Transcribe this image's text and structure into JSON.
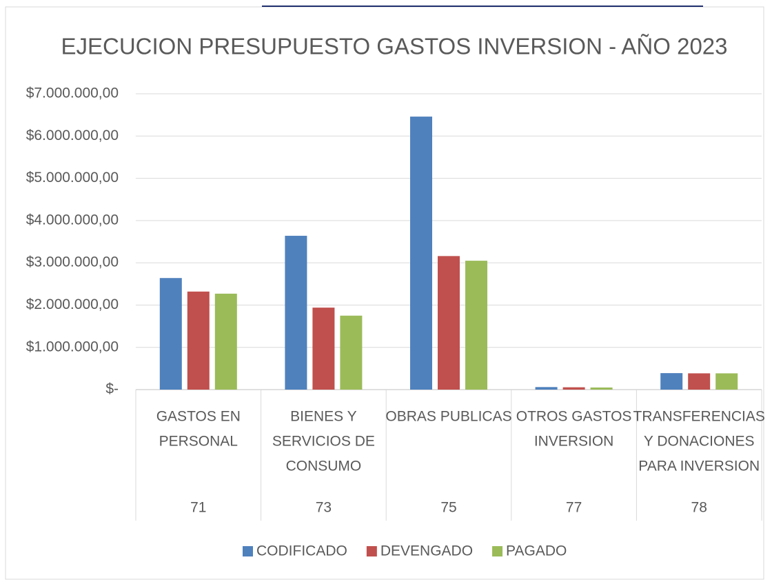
{
  "chart_data": {
    "type": "bar",
    "title": "EJECUCION PRESUPUESTO GASTOS INVERSION - AÑO 2023",
    "categories": [
      [
        "GASTOS EN",
        "PERSONAL"
      ],
      [
        "BIENES Y",
        "SERVICIOS DE",
        "CONSUMO"
      ],
      [
        "OBRAS PUBLICAS"
      ],
      [
        "OTROS GASTOS",
        "INVERSION"
      ],
      [
        "TRANSFERENCIAS",
        "Y DONACIONES",
        "PARA INVERSION"
      ]
    ],
    "codes": [
      "71",
      "73",
      "75",
      "77",
      "78"
    ],
    "series": [
      {
        "name": "CODIFICADO",
        "color": "#4f81bd",
        "values": [
          2640000,
          3640000,
          6460000,
          60000,
          390000
        ]
      },
      {
        "name": "DEVENGADO",
        "color": "#c0504d",
        "values": [
          2320000,
          1940000,
          3160000,
          55000,
          385000
        ]
      },
      {
        "name": "PAGADO",
        "color": "#9bbb59",
        "values": [
          2270000,
          1750000,
          3050000,
          50000,
          385000
        ]
      }
    ],
    "ylim": [
      0,
      7000000
    ],
    "yticks": [
      {
        "value": 0,
        "label": "$-"
      },
      {
        "value": 1000000,
        "label": "$1.000.000,00"
      },
      {
        "value": 2000000,
        "label": "$2.000.000,00"
      },
      {
        "value": 3000000,
        "label": "$3.000.000,00"
      },
      {
        "value": 4000000,
        "label": "$4.000.000,00"
      },
      {
        "value": 5000000,
        "label": "$5.000.000,00"
      },
      {
        "value": 6000000,
        "label": "$6.000.000,00"
      },
      {
        "value": 7000000,
        "label": "$7.000.000,00"
      }
    ],
    "grid": true,
    "legend": "bottom"
  }
}
